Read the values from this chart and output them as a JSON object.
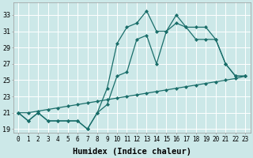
{
  "xlabel": "Humidex (Indice chaleur)",
  "xlim": [
    -0.5,
    23.5
  ],
  "ylim": [
    18.5,
    34.5
  ],
  "yticks": [
    19,
    21,
    23,
    25,
    27,
    29,
    31,
    33
  ],
  "xticks": [
    0,
    1,
    2,
    3,
    4,
    5,
    6,
    7,
    8,
    9,
    10,
    11,
    12,
    13,
    14,
    15,
    16,
    17,
    18,
    19,
    20,
    21,
    22,
    23
  ],
  "background_color": "#cce8e8",
  "grid_color": "#ffffff",
  "line_color": "#1a6e6a",
  "line1_x": [
    0,
    1,
    2,
    3,
    4,
    5,
    6,
    7,
    8,
    9,
    10,
    11,
    12,
    13,
    14,
    15,
    16,
    17,
    18,
    19,
    20,
    21,
    22,
    23
  ],
  "line1_y": [
    21,
    20,
    21,
    20,
    20,
    20,
    20,
    19,
    21,
    24,
    29.5,
    31.5,
    32,
    33.5,
    31,
    31,
    33,
    31.5,
    31.5,
    31.5,
    30,
    27,
    25.5,
    25.5
  ],
  "line2_x": [
    0,
    1,
    2,
    3,
    4,
    5,
    6,
    7,
    8,
    9,
    10,
    11,
    12,
    13,
    14,
    15,
    16,
    17,
    18,
    19,
    20,
    21,
    22,
    23
  ],
  "line2_y": [
    21,
    20,
    21,
    20,
    20,
    20,
    20,
    19,
    21,
    22,
    25.5,
    26,
    30,
    30.5,
    27,
    31,
    32,
    31.5,
    30,
    30,
    30,
    27,
    25.5,
    25.5
  ],
  "line3_x": [
    0,
    1,
    2,
    3,
    4,
    5,
    6,
    7,
    8,
    9,
    10,
    11,
    12,
    13,
    14,
    15,
    16,
    17,
    18,
    19,
    20,
    21,
    22,
    23
  ],
  "line3_y": [
    21,
    21,
    21.2,
    21.4,
    21.6,
    21.8,
    22,
    22.2,
    22.4,
    22.6,
    22.8,
    23,
    23.2,
    23.4,
    23.6,
    23.8,
    24,
    24.2,
    24.4,
    24.6,
    24.8,
    25,
    25.2,
    25.5
  ],
  "marker": "D",
  "markersize": 2.0,
  "linewidth": 0.9,
  "font_color": "#000000",
  "xlabel_fontsize": 7.5,
  "ytick_fontsize": 6.0,
  "xtick_fontsize": 5.5
}
